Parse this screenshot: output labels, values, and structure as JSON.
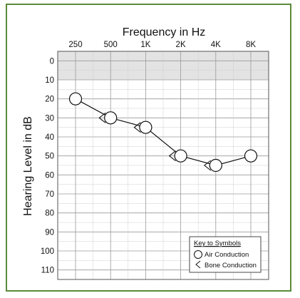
{
  "chart_data": {
    "type": "scatter",
    "title": "",
    "xlabel": "Frequency in Hz",
    "ylabel": "Hearing Level in dB",
    "x_categories": [
      "250",
      "500",
      "1K",
      "2K",
      "4K",
      "8K"
    ],
    "y_ticks": [
      0,
      10,
      20,
      30,
      40,
      50,
      60,
      70,
      80,
      90,
      100,
      110
    ],
    "ylim": [
      -5,
      115
    ],
    "y_inverted": true,
    "shaded_band": [
      -5,
      10
    ],
    "grid": true,
    "series": [
      {
        "name": "Air Conduction",
        "symbol": "circle",
        "connected": true,
        "points": [
          {
            "x": "250",
            "y": 20
          },
          {
            "x": "500",
            "y": 30
          },
          {
            "x": "1K",
            "y": 35
          },
          {
            "x": "2K",
            "y": 50
          },
          {
            "x": "4K",
            "y": 55
          },
          {
            "x": "8K",
            "y": 50
          }
        ]
      },
      {
        "name": "Bone Conduction",
        "symbol": "left-angle",
        "connected": false,
        "points": [
          {
            "x": "500",
            "y": 30
          },
          {
            "x": "1K",
            "y": 35
          },
          {
            "x": "2K",
            "y": 50
          },
          {
            "x": "4K",
            "y": 55
          }
        ]
      }
    ],
    "legend": {
      "title": "Key to Symbols",
      "placement": "bottom-right",
      "entries": [
        "Air Conduction",
        "Bone Conduction"
      ]
    },
    "colors": {
      "frame": "#5a8a3a",
      "shade": "#e3e3e3",
      "grid": "#9a9a9a",
      "ink": "#111111"
    }
  }
}
